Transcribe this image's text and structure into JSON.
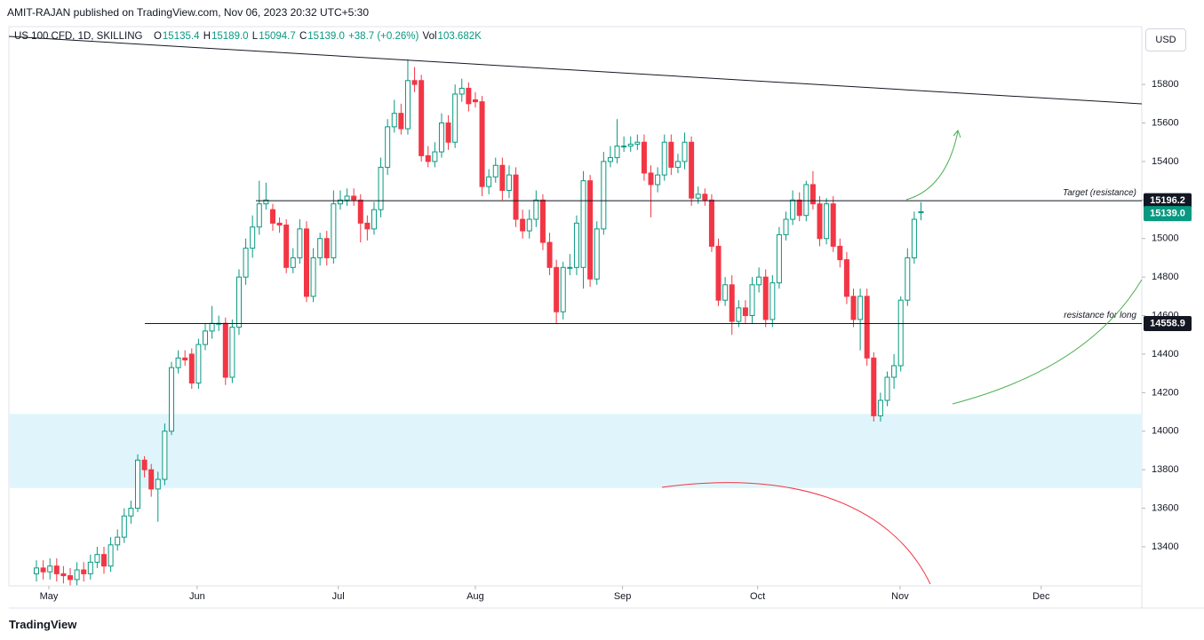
{
  "header": {
    "publisher": "AMIT-RAJAN published on TradingView.com, Nov 06, 2023 20:32 UTC+5:30",
    "symbol": "US 100 CFD, 1D, SKILLING",
    "ohlc": [
      {
        "key": "O",
        "value": "15135.4"
      },
      {
        "key": "H",
        "value": "15189.0"
      },
      {
        "key": "L",
        "value": "15094.7"
      },
      {
        "key": "C",
        "value": "15139.0"
      }
    ],
    "change": "+38.7 (+0.26%)",
    "volume": {
      "key": "Vol",
      "value": "103.682K"
    }
  },
  "currency_button": "USD",
  "footer": "TradingView",
  "chart_data": {
    "type": "candlestick",
    "up_color": "#089981",
    "down_color": "#f23645",
    "zone_color": "#e0f5fb",
    "open": [
      13260,
      13290,
      13270,
      13300,
      13260,
      13250,
      13230,
      13280,
      13260,
      13320,
      13360,
      13300,
      13410,
      13450,
      13560,
      13600,
      13850,
      13800,
      13700,
      13750,
      14000,
      14330,
      14380,
      14400,
      14250,
      14450,
      14520,
      14560,
      14560,
      14280,
      14540,
      14800,
      14950,
      15060,
      15180,
      15150,
      15080,
      15070,
      14850,
      14900,
      15050,
      14700,
      14900,
      15000,
      14900,
      15180,
      15200,
      15220,
      15200,
      15080,
      15050,
      15150,
      15370,
      15580,
      15650,
      15570,
      15820,
      15820,
      15430,
      15400,
      15450,
      15600,
      15500,
      15750,
      15780,
      15720,
      15710,
      15270,
      15320,
      15380,
      15250,
      15330,
      15100,
      15040,
      15100,
      15200,
      14980,
      14850,
      14620,
      14850,
      14850,
      14850,
      15300,
      14790,
      15050,
      15400,
      15420,
      15480,
      15480,
      15490,
      15500,
      15340,
      15280,
      15330,
      15500,
      15370,
      15400,
      15500,
      15210,
      15230,
      15200,
      14960,
      14680,
      14760,
      14570,
      14640,
      14600,
      14760,
      14800,
      14580,
      14770,
      15020,
      15100,
      15200,
      15120,
      15280,
      15180,
      15000,
      15180,
      14960,
      14890,
      14700,
      14580,
      14700,
      14380,
      14080,
      14160,
      14280,
      14340,
      14680,
      14900,
      15135.4
    ],
    "high": [
      13330,
      13330,
      13340,
      13340,
      13300,
      13290,
      13320,
      13320,
      13360,
      13400,
      13400,
      13450,
      13490,
      13600,
      13640,
      13880,
      13870,
      13830,
      13790,
      14040,
      14360,
      14420,
      14420,
      14430,
      14480,
      14560,
      14650,
      14600,
      14590,
      14580,
      14840,
      15000,
      15120,
      15300,
      15290,
      15180,
      15110,
      15100,
      14950,
      15100,
      15090,
      14950,
      15030,
      15040,
      15250,
      15250,
      15260,
      15260,
      15230,
      15120,
      15190,
      15420,
      15620,
      15720,
      15700,
      15930,
      15890,
      15850,
      15480,
      15500,
      15650,
      15640,
      15800,
      15830,
      15810,
      15760,
      15740,
      15360,
      15420,
      15420,
      15380,
      15370,
      15150,
      15150,
      15250,
      15230,
      15030,
      14890,
      14880,
      14920,
      15120,
      15350,
      15330,
      15090,
      15450,
      15480,
      15620,
      15530,
      15530,
      15540,
      15540,
      15380,
      15370,
      15540,
      15540,
      15440,
      15550,
      15530,
      15270,
      15260,
      15230,
      15000,
      14800,
      14810,
      14680,
      14680,
      14800,
      14850,
      14840,
      14810,
      15060,
      15140,
      15250,
      15240,
      15300,
      15350,
      15220,
      15210,
      15220,
      15000,
      14930,
      14740,
      14740,
      14740,
      14410,
      14200,
      14310,
      14400,
      14700,
      14950,
      15140,
      15189
    ],
    "low": [
      13220,
      13230,
      13230,
      13220,
      13210,
      13200,
      13200,
      13220,
      13230,
      13290,
      13260,
      13270,
      13380,
      13420,
      13520,
      13580,
      13760,
      13660,
      13530,
      13720,
      13980,
      14300,
      14340,
      14220,
      14220,
      14420,
      14480,
      14520,
      14240,
      14250,
      14500,
      14760,
      14900,
      15020,
      15150,
      15040,
      15030,
      14820,
      14820,
      14870,
      14670,
      14670,
      14860,
      14860,
      14870,
      15150,
      15170,
      15170,
      14980,
      14990,
      15020,
      15110,
      15330,
      15550,
      15540,
      15540,
      15760,
      15400,
      15370,
      15370,
      15420,
      15460,
      15470,
      15710,
      15660,
      15680,
      15220,
      15230,
      15290,
      15200,
      15210,
      15060,
      15000,
      15000,
      15060,
      14940,
      14810,
      14560,
      14580,
      14810,
      14810,
      14740,
      14750,
      14760,
      15020,
      15370,
      15390,
      15450,
      15450,
      15460,
      15300,
      15110,
      15240,
      15300,
      15330,
      15340,
      15360,
      15170,
      15180,
      15170,
      14930,
      14650,
      14650,
      14500,
      14540,
      14560,
      14560,
      14720,
      14540,
      14540,
      14740,
      14990,
      15070,
      15090,
      15090,
      15150,
      14960,
      14970,
      14930,
      14850,
      14660,
      14540,
      14420,
      14340,
      14050,
      14050,
      14130,
      14220,
      14310,
      14650,
      14870,
      15094.7
    ],
    "close": [
      13290,
      13270,
      13300,
      13260,
      13250,
      13230,
      13280,
      13260,
      13320,
      13360,
      13300,
      13410,
      13450,
      13560,
      13600,
      13850,
      13800,
      13700,
      13750,
      14000,
      14330,
      14380,
      14370,
      14250,
      14450,
      14520,
      14560,
      14560,
      14280,
      14540,
      14800,
      14950,
      15060,
      15180,
      15200,
      15080,
      15070,
      14850,
      14900,
      15050,
      14700,
      14900,
      15000,
      14900,
      15180,
      15200,
      15220,
      15200,
      15080,
      15050,
      15150,
      15370,
      15580,
      15650,
      15570,
      15820,
      15800,
      15430,
      15400,
      15450,
      15600,
      15500,
      15750,
      15780,
      15700,
      15710,
      15270,
      15320,
      15380,
      15250,
      15330,
      15100,
      15040,
      15100,
      15200,
      14980,
      14850,
      14620,
      14850,
      14850,
      15080,
      15300,
      14790,
      15050,
      15400,
      15420,
      15480,
      15480,
      15490,
      15500,
      15340,
      15280,
      15330,
      15500,
      15370,
      15400,
      15500,
      15210,
      15230,
      15200,
      14960,
      14680,
      14760,
      14570,
      14640,
      14600,
      14760,
      14800,
      14580,
      14770,
      15020,
      15100,
      15200,
      15120,
      15280,
      15180,
      15000,
      15180,
      14960,
      14890,
      14700,
      14580,
      14700,
      14380,
      14080,
      14160,
      14280,
      14340,
      14680,
      14900,
      15100,
      15139.0
    ],
    "xlim": [
      -4.08,
      163.7
    ],
    "xticks": [
      {
        "value": 1.84,
        "label": "May"
      },
      {
        "value": 23.8,
        "label": "Jun"
      },
      {
        "value": 44.7,
        "label": "Jul"
      },
      {
        "value": 65.0,
        "label": "Aug"
      },
      {
        "value": 86.8,
        "label": "Sep"
      },
      {
        "value": 106.8,
        "label": "Oct"
      },
      {
        "value": 127.9,
        "label": "Nov"
      },
      {
        "value": 148.8,
        "label": "Dec"
      }
    ],
    "ylim": [
      13200,
      16100
    ],
    "yticks": [
      13400,
      13600,
      13800,
      14000,
      14200,
      14400,
      14600,
      14800,
      15000,
      15200,
      15400,
      15600,
      15800
    ],
    "zone": [
      13705,
      14090
    ],
    "price_lines": [
      {
        "value": 15196.2,
        "label": "15196.2",
        "text": "Target (resistance)",
        "color": "#131722"
      },
      {
        "value": 14558.9,
        "label": "14558.9",
        "text": "resistance for long",
        "color": "#131722"
      }
    ],
    "last_price": {
      "value": 15139.0,
      "label": "15139.0",
      "color": "#089981"
    }
  }
}
